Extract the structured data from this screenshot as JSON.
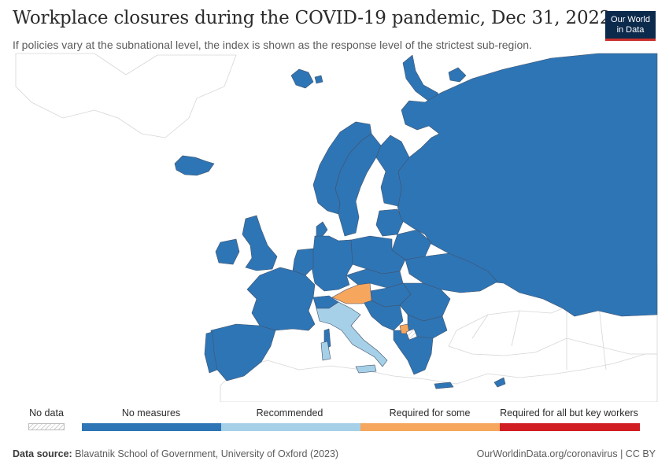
{
  "header": {
    "title": "Workplace closures during the COVID-19 pandemic, Dec 31, 2022",
    "subtitle": "If policies vary at the subnational level, the index is shown as the response level of the strictest sub-region.",
    "logo_line1": "Our World",
    "logo_line2": "in Data"
  },
  "legend": {
    "no_data": "No data",
    "categories": [
      {
        "label": "No measures",
        "color": "#2e75b6"
      },
      {
        "label": "Recommended",
        "color": "#a6d0e8"
      },
      {
        "label": "Required for some",
        "color": "#f7a65e"
      },
      {
        "label": "Required for all but key workers",
        "color": "#d11e22"
      }
    ]
  },
  "map_data": {
    "type": "choropleth",
    "region": "Europe",
    "colors": {
      "no_measures": "#2e75b6",
      "recommended": "#a6d0e8",
      "required_for_some": "#f7a65e",
      "no_data": "hatched",
      "outside": "#ffffff"
    },
    "highlighted": {
      "required_for_some": [
        "Austria",
        "Montenegro"
      ],
      "recommended": [
        "Italy"
      ],
      "no_data": [
        "Kosovo"
      ]
    }
  },
  "footer": {
    "source_label": "Data source:",
    "source_text": "Blavatnik School of Government, University of Oxford (2023)",
    "url": "OurWorldinData.org/coronavirus",
    "license": "CC BY"
  }
}
